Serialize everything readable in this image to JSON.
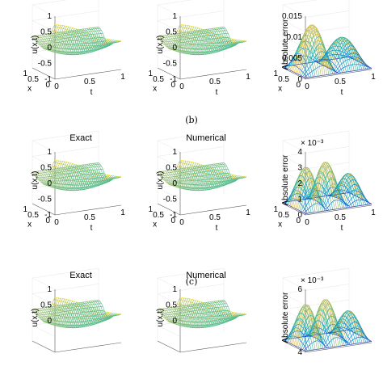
{
  "rows": [
    {
      "id": "a",
      "caption": "(b)",
      "panels": [
        {
          "kind": "exact",
          "title": "",
          "ylabel": "u(x,t)",
          "yticks": [
            "1",
            "0.5",
            "0",
            "-0.5",
            "-1"
          ],
          "xlabel": "x",
          "xticks": [
            "1",
            "0.5",
            "0"
          ],
          "tlabel": "t",
          "tticks": [
            "0",
            "0.5",
            "1"
          ],
          "exp": ""
        },
        {
          "kind": "numerical",
          "title": "",
          "ylabel": "u(x,t)",
          "yticks": [
            "1",
            "0.5",
            "0",
            "-0.5",
            "-1"
          ],
          "xlabel": "x",
          "xticks": [
            "1",
            "0.5",
            "0"
          ],
          "tlabel": "t",
          "tticks": [
            "0",
            "0.5",
            "1"
          ],
          "exp": ""
        },
        {
          "kind": "error",
          "title": "",
          "ylabel": "Absolute error",
          "yticks": [
            "0.015",
            "0.01",
            "0.005",
            "0"
          ],
          "xlabel": "x",
          "xticks": [
            "1",
            "0.5",
            "0"
          ],
          "tlabel": "t",
          "tticks": [
            "0",
            "0.5",
            "1"
          ],
          "exp": ""
        }
      ]
    },
    {
      "id": "b",
      "caption": "(c)",
      "panels": [
        {
          "kind": "exact",
          "title": "Exact",
          "ylabel": "u(x,t)",
          "yticks": [
            "1",
            "0.5",
            "0",
            "-0.5",
            "-1"
          ],
          "xlabel": "x",
          "xticks": [
            "1",
            "0.5",
            "0"
          ],
          "tlabel": "t",
          "tticks": [
            "0",
            "0.5",
            "1"
          ],
          "exp": ""
        },
        {
          "kind": "numerical",
          "title": "Numerical",
          "ylabel": "u(x,t)",
          "yticks": [
            "1",
            "0.5",
            "0",
            "-0.5",
            "-1"
          ],
          "xlabel": "x",
          "xticks": [
            "1",
            "0.5",
            "0"
          ],
          "tlabel": "t",
          "tticks": [
            "0",
            "0.5",
            "1"
          ],
          "exp": ""
        },
        {
          "kind": "error",
          "title": "",
          "ylabel": "Absolute error",
          "yticks": [
            "4",
            "3",
            "2",
            "1",
            "0"
          ],
          "xlabel": "x",
          "xticks": [
            "1",
            "0.5",
            "0"
          ],
          "tlabel": "t",
          "tticks": [
            "0",
            "0.5",
            "1"
          ],
          "exp": "× 10⁻³"
        }
      ]
    },
    {
      "id": "c",
      "caption": "",
      "panels": [
        {
          "kind": "exact",
          "title": "Exact",
          "ylabel": "u(x,t)",
          "yticks": [
            "1",
            "0.5",
            "0"
          ],
          "xlabel": "",
          "xticks": [],
          "tlabel": "",
          "tticks": [],
          "exp": ""
        },
        {
          "kind": "numerical",
          "title": "Numerical",
          "ylabel": "u(x,t)",
          "yticks": [
            "1",
            "0.5",
            "0"
          ],
          "xlabel": "",
          "xticks": [],
          "tlabel": "",
          "tticks": [],
          "exp": ""
        },
        {
          "kind": "error",
          "title": "",
          "ylabel": "Absolute error",
          "yticks": [
            "6",
            "4"
          ],
          "xlabel": "",
          "xticks": [],
          "tlabel": "",
          "tticks": [],
          "exp": "× 10⁻³"
        }
      ]
    }
  ]
}
